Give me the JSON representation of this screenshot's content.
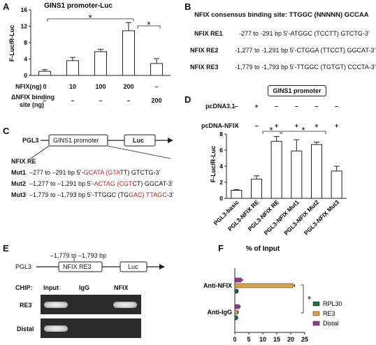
{
  "panels": {
    "A": "A",
    "B": "B",
    "C": "C",
    "D": "D",
    "E": "E",
    "F": "F"
  },
  "panelA": {
    "title": "GINS1 promoter-Luc",
    "ylabel": "F-Luc/R-Luc",
    "yticks": [
      "0",
      "4",
      "8",
      "12",
      "16"
    ],
    "row1_label": "NFIX(ng)",
    "row1_values": [
      "0",
      "10",
      "100",
      "200",
      "–"
    ],
    "row2_label_line1": "ΔNFIX binding",
    "row2_label_line2": "site (ng)",
    "row2_values": [
      "–",
      "–",
      "–",
      "–",
      "200"
    ],
    "sig": [
      "*",
      "*"
    ]
  },
  "panelB": {
    "consensus": "NFIX consensus binding site: TTGGC (NNNNN) GCCAA",
    "rows": [
      {
        "name": "NFIX RE1",
        "seq": "-277 to -291 bp 5’-ATGGC (TCCTT) GTCTG-3’"
      },
      {
        "name": "NFIX RE2",
        "seq": "-1,277 to -1,291 bp 5’-CTGGA (TTCCT) GGCAT-3’"
      },
      {
        "name": "NFIX RE3",
        "seq": "-1,779 to -1,793 bp 5’-TTGGC (TGTGT) CCCTA-3’"
      }
    ]
  },
  "panelC": {
    "pgl3": "PGL3",
    "promoter": "GINS1 promoter",
    "luc": "Luc",
    "re_label": "NFIX RE",
    "muts": [
      {
        "name": "Mut1",
        "pos": "–277 to –291 bp 5’-",
        "red1": "GCATA (GTA",
        "black1": "TT) GTCTG-3’",
        "red2": "",
        "black2": ""
      },
      {
        "name": "Mut2",
        "pos": "–1,277 to –1,291 bp 5’-",
        "red1": "ACTAG (CGT",
        "black1": "CT) GGCAT-3’",
        "red2": "",
        "black2": ""
      },
      {
        "name": "Mut3",
        "pos": "–1,779 to –1,793 bp 5’-TTGGC (TG",
        "red1": "GAC) TTAGC",
        "black1": "-3’",
        "red2": "",
        "black2": ""
      }
    ]
  },
  "panelD": {
    "header": "GINS1 promoter",
    "row1_label": "pcDNA3.1",
    "row1_values": [
      "–",
      "+",
      "–",
      "–",
      "–",
      "–"
    ],
    "row2_label": "pcDNA-NFIX",
    "row2_values": [
      "–",
      "–",
      "+",
      "+",
      "+",
      "+"
    ],
    "ylabel": "F-Luc/R-Luc",
    "yticks": [
      "0",
      "2",
      "4",
      "6",
      "8"
    ],
    "categories": [
      "PGL3-basic",
      "PGL3-NFIX RE",
      "PGL3-NFIX RE",
      "PGL3-NFIX Mut1",
      "PGL3-NFIX Mut2",
      "PGL3-NFIX Mut3"
    ],
    "sig": [
      "*",
      "*"
    ]
  },
  "panelE": {
    "range": "–1,779 to –1,793 bp",
    "pgl3": "PGL3",
    "re3": "NFIX RE3",
    "luc": "Luc",
    "chip": "CHIP:",
    "cols": [
      "Input",
      "IgG",
      "NFIX"
    ],
    "rows": [
      "RE3",
      "Distal"
    ]
  },
  "panelF": {
    "title": "% of Input",
    "groups": [
      "Anti-NFIX",
      "Anti-IgG"
    ],
    "xticks": [
      "0",
      "5",
      "10",
      "15",
      "20",
      "25"
    ],
    "legend": [
      "RPL30",
      "RE3",
      "Distal"
    ],
    "sig": "*"
  },
  "colors": {
    "rpl30": "#1e6b45",
    "re3": "#d9a34a",
    "distal": "#8e3a8f",
    "red": "#d0211c"
  },
  "chart_data": [
    {
      "type": "bar",
      "title": "GINS1 promoter-Luc",
      "ylabel": "F-Luc/R-Luc",
      "ylim": [
        0,
        16
      ],
      "categories": [
        "0",
        "10",
        "100",
        "200",
        "ΔNFIX 200"
      ],
      "values": [
        1.0,
        3.6,
        5.8,
        10.9,
        2.9
      ],
      "errors": [
        0.4,
        0.8,
        0.6,
        2.0,
        1.2
      ]
    },
    {
      "type": "bar",
      "ylabel": "F-Luc/R-Luc",
      "ylim": [
        0,
        8
      ],
      "categories": [
        "PGL3-basic",
        "PGL3-NFIX RE",
        "PGL3-NFIX RE",
        "PGL3-NFIX Mut1",
        "PGL3-NFIX Mut2",
        "PGL3-NFIX Mut3"
      ],
      "values": [
        1.0,
        2.4,
        7.1,
        5.9,
        6.7,
        3.4
      ],
      "errors": [
        0.1,
        0.4,
        0.6,
        1.4,
        0.3,
        0.6
      ]
    },
    {
      "type": "bar",
      "title": "% of Input",
      "xlim": [
        0,
        25
      ],
      "categories": [
        "Anti-NFIX",
        "Anti-IgG"
      ],
      "series": [
        {
          "name": "RPL30",
          "values": [
            1.0,
            0.8
          ],
          "errors": [
            0.2,
            0.2
          ]
        },
        {
          "name": "RE3",
          "values": [
            20.8,
            1.0
          ],
          "errors": [
            0.6,
            0.2
          ]
        },
        {
          "name": "Distal",
          "values": [
            2.3,
            1.6
          ],
          "errors": [
            0.4,
            0.3
          ]
        }
      ]
    }
  ]
}
